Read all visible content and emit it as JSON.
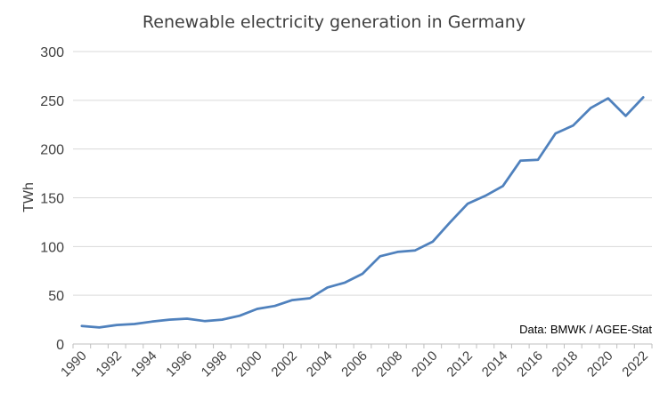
{
  "chart_data": {
    "type": "line",
    "title": "Renewable electricity  generation in Germany",
    "xlabel": "",
    "ylabel": "TWh",
    "ylim": [
      0,
      300
    ],
    "yticks": [
      0,
      50,
      100,
      150,
      200,
      250,
      300
    ],
    "grid": true,
    "source": "Data: BMWK / AGEE-Stat",
    "x": [
      1990,
      1991,
      1992,
      1993,
      1994,
      1995,
      1996,
      1997,
      1998,
      1999,
      2000,
      2001,
      2002,
      2003,
      2004,
      2005,
      2006,
      2007,
      2008,
      2009,
      2010,
      2011,
      2012,
      2013,
      2014,
      2015,
      2016,
      2017,
      2018,
      2019,
      2020,
      2021,
      2022
    ],
    "xtick_labels": [
      "1990",
      "1992",
      "1994",
      "1996",
      "1998",
      "2000",
      "2002",
      "2004",
      "2006",
      "2008",
      "2010",
      "2012",
      "2014",
      "2016",
      "2018",
      "2020",
      "2022"
    ],
    "series": [
      {
        "color": "#4f81bd",
        "values": [
          18.5,
          17,
          19.5,
          20.5,
          23,
          25,
          26,
          23.5,
          25,
          29,
          36,
          39,
          45,
          47,
          58,
          63,
          72,
          90,
          94.5,
          96,
          105,
          125,
          144,
          152,
          162,
          188,
          189,
          216,
          224,
          242,
          252,
          234,
          253
        ]
      }
    ]
  }
}
